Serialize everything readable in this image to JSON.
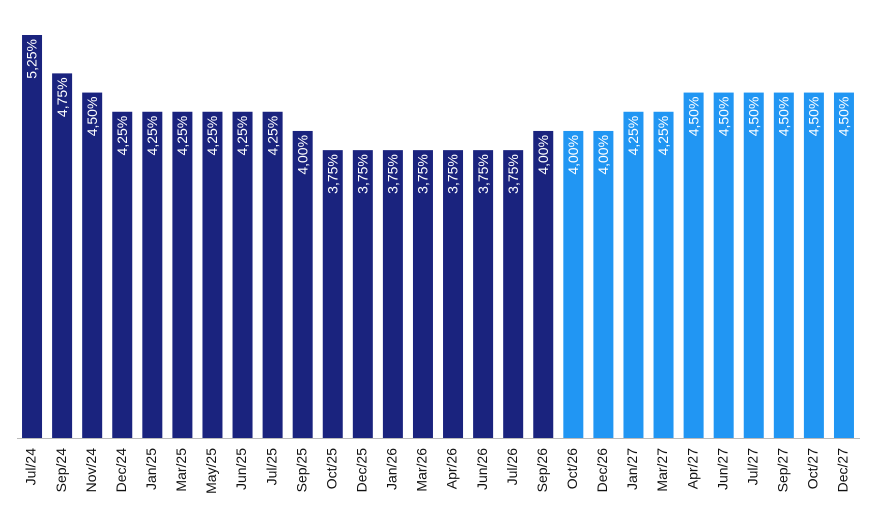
{
  "chart_data": {
    "type": "bar",
    "categories": [
      "Jul/24",
      "Sep/24",
      "Nov/24",
      "Dec/24",
      "Jan/25",
      "Mar/25",
      "May/25",
      "Jun/25",
      "Jul/25",
      "Sep/25",
      "Oct/25",
      "Dec/25",
      "Jan/26",
      "Mar/26",
      "Apr/26",
      "Jun/26",
      "Jul/26",
      "Sep/26",
      "Oct/26",
      "Dec/26",
      "Jan/27",
      "Mar/27",
      "Apr/27",
      "Jun/27",
      "Jul/27",
      "Sep/27",
      "Oct/27",
      "Dec/27"
    ],
    "values": [
      5.25,
      4.75,
      4.5,
      4.25,
      4.25,
      4.25,
      4.25,
      4.25,
      4.25,
      4.0,
      3.75,
      3.75,
      3.75,
      3.75,
      3.75,
      3.75,
      3.75,
      4.0,
      4.0,
      4.0,
      4.25,
      4.25,
      4.5,
      4.5,
      4.5,
      4.5,
      4.5,
      4.5
    ],
    "value_labels": [
      "5,25%",
      "4,75%",
      "4,50%",
      "4,25%",
      "4,25%",
      "4,25%",
      "4,25%",
      "4,25%",
      "4,25%",
      "4,00%",
      "3,75%",
      "3,75%",
      "3,75%",
      "3,75%",
      "3,75%",
      "3,75%",
      "3,75%",
      "4,00%",
      "4,00%",
      "4,00%",
      "4,25%",
      "4,25%",
      "4,50%",
      "4,50%",
      "4,50%",
      "4,50%",
      "4,50%",
      "4,50%"
    ],
    "colors": [
      "#1a237e",
      "#1a237e",
      "#1a237e",
      "#1a237e",
      "#1a237e",
      "#1a237e",
      "#1a237e",
      "#1a237e",
      "#1a237e",
      "#1a237e",
      "#1a237e",
      "#1a237e",
      "#1a237e",
      "#1a237e",
      "#1a237e",
      "#1a237e",
      "#1a237e",
      "#1a237e",
      "#2196f3",
      "#2196f3",
      "#2196f3",
      "#2196f3",
      "#2196f3",
      "#2196f3",
      "#2196f3",
      "#2196f3",
      "#2196f3",
      "#2196f3"
    ],
    "ylim": [
      0,
      5.25
    ]
  }
}
